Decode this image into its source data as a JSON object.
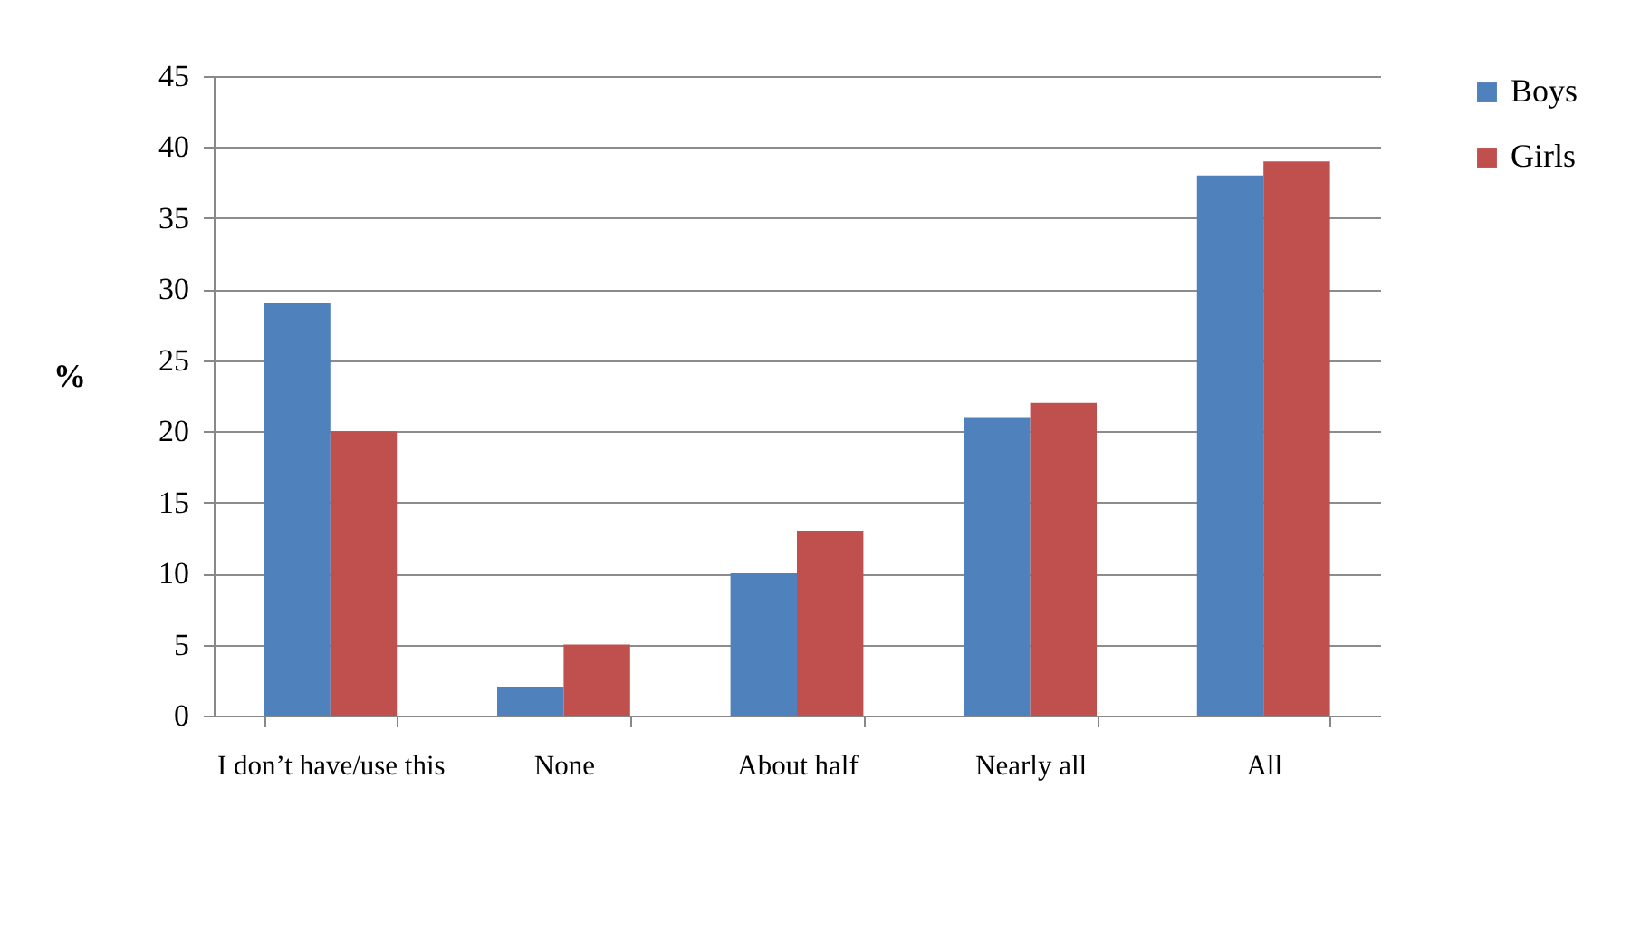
{
  "chart_data": {
    "type": "bar",
    "ylabel": "%",
    "categories": [
      "I don’t have/use this",
      "None",
      "About half",
      "Nearly all",
      "All"
    ],
    "series": [
      {
        "name": "Boys",
        "color": "#4f81bd",
        "values": [
          29,
          2,
          10,
          21,
          38
        ]
      },
      {
        "name": "Girls",
        "color": "#c0504d",
        "values": [
          20,
          5,
          13,
          22,
          39
        ]
      }
    ],
    "ylim": [
      0,
      45
    ],
    "yticks": [
      0,
      5,
      10,
      15,
      20,
      25,
      30,
      35,
      40,
      45
    ],
    "grid": "y",
    "legend": "right"
  }
}
